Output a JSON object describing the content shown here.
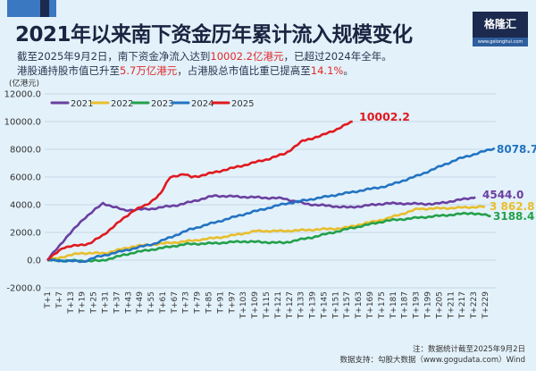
{
  "header": {
    "title": "2021年以来南下资金历年累计流入规模变化",
    "sub1_a": "截至2025年9月2日，南下资金净流入达到",
    "sub1_hl": "10002.2亿港元",
    "sub1_b": "，已超过2024年全年。",
    "sub2_a": "港股通持股市值已升至",
    "sub2_hl": "5.7万亿港元",
    "sub2_b": "，占港股总市值比重已提高至",
    "sub2_hl2": "14.1%",
    "sub2_c": "。",
    "logo_text": "格隆汇",
    "logo_url": "www.gelonghui.com"
  },
  "footer": {
    "note": "注：数据统计截至2025年9月2日",
    "source": "数据支持：勾股大数据（www.gogudata.com）Wind"
  },
  "chart_data": {
    "type": "line",
    "title": "2021年以来南下资金历年累计流入规模变化",
    "ylabel": "(亿港元)",
    "xlabel": "",
    "ylim": [
      -2000,
      12000
    ],
    "yticks": [
      -2000,
      0,
      2000,
      4000,
      6000,
      8000,
      10000,
      12000
    ],
    "ytick_labels": [
      "-2000.0",
      "0.0",
      "2000.0",
      "4000.0",
      "6000.0",
      "8000.0",
      "10000.0",
      "12000.0"
    ],
    "xlim": [
      1,
      234
    ],
    "xtick_labels": [
      "T+1",
      "T+7",
      "T+13",
      "T+19",
      "T+25",
      "T+31",
      "T+37",
      "T+43",
      "T+49",
      "T+55",
      "T+61",
      "T+67",
      "T+73",
      "T+79",
      "T+85",
      "T+91",
      "T+97",
      "T+103",
      "T+109",
      "T+115",
      "T+121",
      "T+127",
      "T+133",
      "T+139",
      "T+145",
      "T+151",
      "T+157",
      "T+163",
      "T+169",
      "T+175",
      "T+181",
      "T+187",
      "T+193",
      "T+199",
      "T+205",
      "T+211",
      "T+217",
      "T+223",
      "T+229"
    ],
    "grid": true,
    "legend": "top-left",
    "series": [
      {
        "name": "2021",
        "color": "#6a3fa0",
        "end_label": "4544.0",
        "x": [
          1,
          10,
          20,
          30,
          41,
          55,
          70,
          88,
          124,
          136,
          158,
          178,
          203,
          224
        ],
        "y": [
          0,
          1500,
          3000,
          4100,
          3600,
          3700,
          4000,
          4650,
          4450,
          4050,
          3800,
          4100,
          4050,
          4544.0
        ]
      },
      {
        "name": "2022",
        "color": "#e8be2c",
        "end_label": "3 862.8",
        "x": [
          1,
          18,
          31,
          46,
          73,
          94,
          110,
          124,
          155,
          178,
          194,
          209,
          229
        ],
        "y": [
          0,
          500,
          500,
          1000,
          1350,
          1700,
          2100,
          2100,
          2300,
          3000,
          3700,
          3750,
          3862.8
        ]
      },
      {
        "name": "2023",
        "color": "#23a04a",
        "end_label": "3188.4",
        "x": [
          1,
          18,
          29,
          46,
          73,
          88,
          103,
          124,
          139,
          159,
          178,
          201,
          222,
          232
        ],
        "y": [
          0,
          -50,
          -50,
          550,
          1150,
          1220,
          1350,
          1250,
          1650,
          2300,
          2850,
          3150,
          3400,
          3188.4
        ]
      },
      {
        "name": "2024",
        "color": "#2273c2",
        "end_label": "8078.7",
        "x": [
          1,
          20,
          26,
          57,
          75,
          103,
          124,
          147,
          178,
          194,
          215,
          234
        ],
        "y": [
          0,
          -100,
          200,
          1200,
          2200,
          3300,
          4050,
          4600,
          5350,
          6100,
          7300,
          8078.7
        ]
      },
      {
        "name": "2025",
        "color": "#e0191f",
        "end_label": "10002.2",
        "x": [
          1,
          9,
          23,
          30,
          37,
          46,
          53,
          60,
          65,
          72,
          76,
          81,
          90,
          102,
          116,
          125,
          134,
          144,
          151,
          160
        ],
        "y": [
          0,
          900,
          1200,
          1800,
          2600,
          3600,
          4000,
          4800,
          6000,
          6200,
          6000,
          6100,
          6400,
          6800,
          7300,
          7700,
          8600,
          9000,
          9400,
          10002.2
        ]
      }
    ]
  }
}
